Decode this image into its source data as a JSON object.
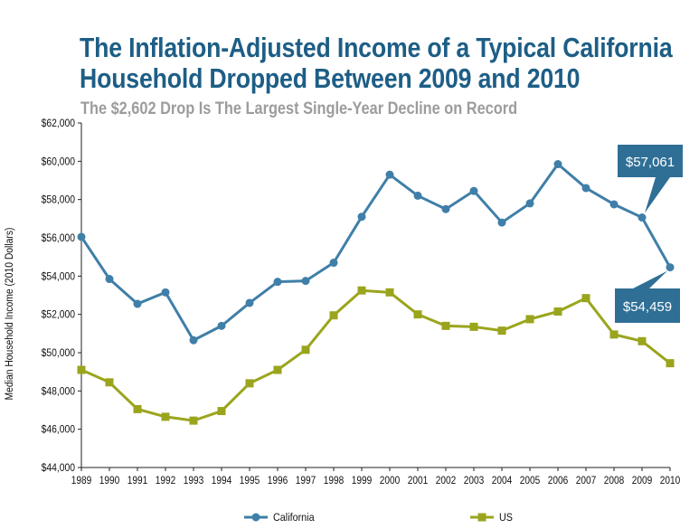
{
  "chart_data": {
    "type": "line",
    "title_lines": [
      "The Inflation-Adjusted Income of a Typical California",
      "Household Dropped Between 2009 and 2010"
    ],
    "subtitle": "The $2,602 Drop Is The Largest Single-Year Decline on Record",
    "ylabel": "Median Household Income (2010 Dollars)",
    "xlabel": "",
    "ylim": [
      44000,
      62000
    ],
    "yticks": [
      44000,
      46000,
      48000,
      50000,
      52000,
      54000,
      56000,
      58000,
      60000,
      62000
    ],
    "ytick_labels": [
      "$44,000",
      "$46,000",
      "$48,000",
      "$50,000",
      "$52,000",
      "$54,000",
      "$56,000",
      "$58,000",
      "$60,000",
      "$62,000"
    ],
    "x": [
      "1989",
      "1990",
      "1991",
      "1992",
      "1993",
      "1994",
      "1995",
      "1996",
      "1997",
      "1998",
      "1999",
      "2000",
      "2001",
      "2002",
      "2003",
      "2004",
      "2005",
      "2006",
      "2007",
      "2008",
      "2009",
      "2010"
    ],
    "grid": false,
    "legend_position": "bottom",
    "series": [
      {
        "name": "California",
        "marker": "circle",
        "color": "#3f7fa8",
        "values": [
          56050,
          53850,
          52550,
          53150,
          50650,
          51400,
          52600,
          53700,
          53750,
          54700,
          57100,
          59300,
          58200,
          57500,
          58450,
          56800,
          57800,
          59850,
          58600,
          57750,
          57061,
          54459
        ]
      },
      {
        "name": "US",
        "marker": "square",
        "color": "#9aa51d",
        "values": [
          49100,
          48450,
          47050,
          46650,
          46450,
          46950,
          48400,
          49100,
          50150,
          51950,
          53250,
          53150,
          52000,
          51400,
          51350,
          51150,
          51750,
          52150,
          52850,
          50950,
          50600,
          49450
        ]
      }
    ],
    "annotations": [
      {
        "label": "$57,061",
        "series": "California",
        "x": "2009",
        "value": 57061
      },
      {
        "label": "$54,459",
        "series": "California",
        "x": "2010",
        "value": 54459
      }
    ],
    "callout_color": "#2f6f96"
  }
}
